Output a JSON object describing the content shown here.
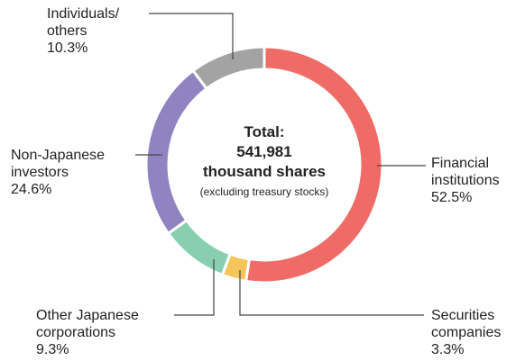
{
  "chart_data": {
    "type": "donut",
    "categories": [
      "Financial\ninstitutions",
      "Securities\ncompanies",
      "Other Japanese\ncorporations",
      "Non-Japanese\ninvestors",
      "Individuals/\nothers"
    ],
    "values": [
      52.5,
      3.3,
      9.3,
      24.6,
      10.3
    ],
    "value_labels": [
      "52.5%",
      "3.3%",
      "9.3%",
      "24.6%",
      "10.3%"
    ],
    "colors": [
      "#ee6b66",
      "#f6c55a",
      "#88cfb0",
      "#8f84c1",
      "#a3a3a3"
    ],
    "center_text": [
      "Total:",
      "541,981",
      "thousand shares",
      "(excluding treasury stocks)"
    ]
  }
}
